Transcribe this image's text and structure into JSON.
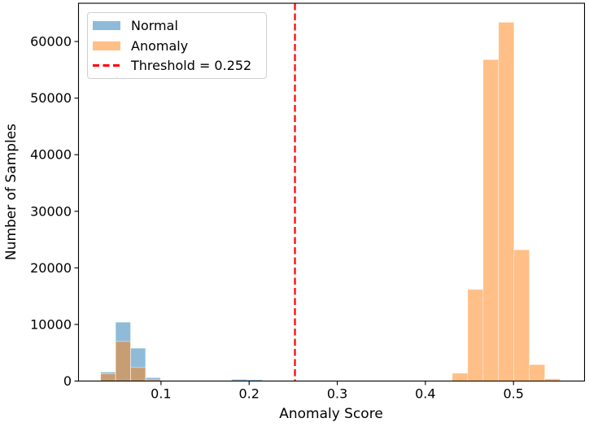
{
  "chart_data": {
    "type": "bar",
    "subtype": "overlaid-histogram",
    "title": "",
    "xlabel": "Anomaly Score",
    "ylabel": "Number of Samples",
    "xlim": [
      0.0064,
      0.5806
    ],
    "ylim": [
      0,
      66760
    ],
    "x_ticks": [
      0.1,
      0.2,
      0.3,
      0.4,
      0.5
    ],
    "x_tick_labels": [
      "0.1",
      "0.2",
      "0.3",
      "0.4",
      "0.5"
    ],
    "y_ticks": [
      0,
      10000,
      20000,
      30000,
      40000,
      50000,
      60000
    ],
    "y_tick_labels": [
      "0",
      "10000",
      "20000",
      "30000",
      "40000",
      "50000",
      "60000"
    ],
    "grid": false,
    "legend_position": "upper left",
    "series": [
      {
        "name": "Normal",
        "color": "#1f77b4",
        "alpha": 0.5,
        "bars": [
          {
            "x0": 0.0315,
            "x1": 0.0485,
            "count": 1600
          },
          {
            "x0": 0.0485,
            "x1": 0.0655,
            "count": 10400
          },
          {
            "x0": 0.0655,
            "x1": 0.0825,
            "count": 5800
          },
          {
            "x0": 0.0825,
            "x1": 0.0995,
            "count": 600
          },
          {
            "x0": 0.18,
            "x1": 0.1975,
            "count": 300
          },
          {
            "x0": 0.1975,
            "x1": 0.215,
            "count": 250
          }
        ]
      },
      {
        "name": "Anomaly",
        "color": "#ff7f0e",
        "alpha": 0.5,
        "bars": [
          {
            "x0": 0.0315,
            "x1": 0.0485,
            "count": 1300
          },
          {
            "x0": 0.0485,
            "x1": 0.0655,
            "count": 7000
          },
          {
            "x0": 0.0655,
            "x1": 0.0825,
            "count": 2400
          },
          {
            "x0": 0.0825,
            "x1": 0.0995,
            "count": 200
          },
          {
            "x0": 0.4305,
            "x1": 0.448,
            "count": 1400
          },
          {
            "x0": 0.448,
            "x1": 0.4655,
            "count": 16200
          },
          {
            "x0": 0.4655,
            "x1": 0.483,
            "count": 56800
          },
          {
            "x0": 0.483,
            "x1": 0.5005,
            "count": 63400
          },
          {
            "x0": 0.5005,
            "x1": 0.518,
            "count": 23200
          },
          {
            "x0": 0.518,
            "x1": 0.5355,
            "count": 2900
          },
          {
            "x0": 0.5355,
            "x1": 0.553,
            "count": 400
          }
        ]
      }
    ],
    "threshold": {
      "value": 0.252,
      "label": "Threshold = 0.252",
      "color": "#ff0000",
      "style": "dashed"
    }
  },
  "legend": {
    "items": [
      {
        "label": "Normal",
        "swatch_color": "#8fbbda"
      },
      {
        "label": "Anomaly",
        "swatch_color": "#ffbf87"
      },
      {
        "label": "Threshold = 0.252",
        "swatch_color": "#ff0000"
      }
    ]
  }
}
